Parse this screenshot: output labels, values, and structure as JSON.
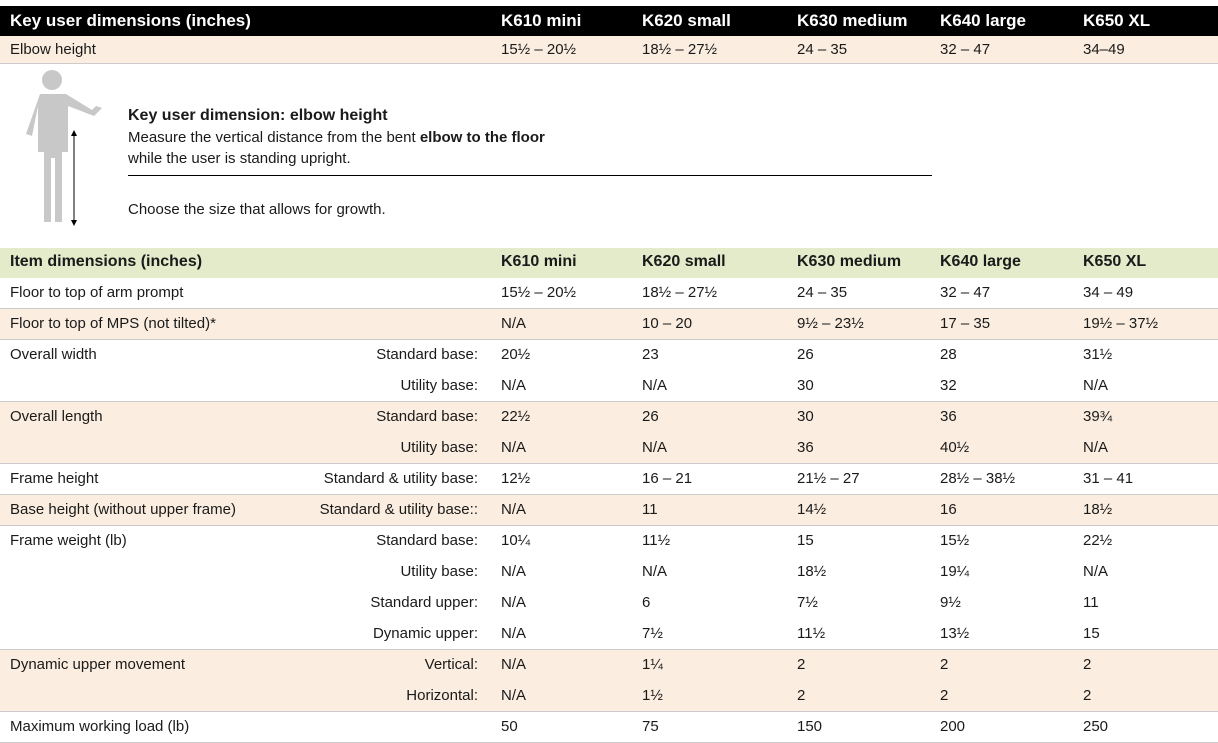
{
  "key_table": {
    "title": "Key user dimensions (inches)",
    "columns": [
      "K610 mini",
      "K620 small",
      "K630 medium",
      "K640 large",
      "K650 XL"
    ],
    "row": {
      "label": "Elbow height",
      "values": [
        "15½ – 20½",
        "18½ – 27½",
        "24 – 35",
        "32 – 47",
        "34–49"
      ]
    }
  },
  "info": {
    "title": "Key user dimension: elbow height",
    "line1": "Measure the vertical distance from the bent",
    "line1_bold": "elbow to the floor",
    "line2": "while the user is standing upright.",
    "note": "Choose the size that allows for growth."
  },
  "item_table": {
    "title": "Item dimensions (inches)",
    "columns": [
      "K610 mini",
      "K620 small",
      "K630 medium",
      "K640 large",
      "K650 XL"
    ],
    "groups": [
      {
        "label": "Floor to top of arm prompt",
        "rows": [
          {
            "values": [
              "15½ – 20½",
              "18½ – 27½",
              "24 – 35",
              "32 – 47",
              "34 – 49"
            ]
          }
        ]
      },
      {
        "label": "Floor to top of MPS (not tilted)*",
        "rows": [
          {
            "values": [
              "N/A",
              "10 – 20",
              "9½ – 23½",
              "17 – 35",
              "19½ – 37½"
            ]
          }
        ]
      },
      {
        "label": "Overall width",
        "rows": [
          {
            "base": "Standard base:",
            "values": [
              "20½",
              "23",
              "26",
              "28",
              "31½"
            ]
          },
          {
            "base": "Utility base:",
            "values": [
              "N/A",
              "N/A",
              "30",
              "32",
              "N/A"
            ]
          }
        ]
      },
      {
        "label": "Overall length",
        "rows": [
          {
            "base": "Standard base:",
            "values": [
              "22½",
              "26",
              "30",
              "36",
              "39¾"
            ]
          },
          {
            "base": "Utility base:",
            "values": [
              "N/A",
              "N/A",
              "36",
              "40½",
              "N/A"
            ]
          }
        ]
      },
      {
        "label": "Frame height",
        "rows": [
          {
            "base": "Standard & utility base:",
            "values": [
              "12½",
              "16 – 21",
              "21½ – 27",
              "28½ – 38½",
              "31 – 41"
            ]
          }
        ]
      },
      {
        "label": "Base height (without upper frame)",
        "rows": [
          {
            "base": "Standard & utility base::",
            "values": [
              "N/A",
              "11",
              "14½",
              "16",
              "18½"
            ]
          }
        ]
      },
      {
        "label": "Frame weight (lb)",
        "rows": [
          {
            "base": "Standard base:",
            "values": [
              "10¼",
              "11½",
              "15",
              "15½",
              "22½"
            ]
          },
          {
            "base": "Utility base:",
            "values": [
              "N/A",
              "N/A",
              "18½",
              "19¼",
              "N/A"
            ]
          },
          {
            "base": "Standard upper:",
            "values": [
              "N/A",
              "6",
              "7½",
              "9½",
              "11"
            ]
          },
          {
            "base": "Dynamic upper:",
            "values": [
              "N/A",
              "7½",
              "11½",
              "13½",
              "15"
            ]
          }
        ]
      },
      {
        "label": "Dynamic upper movement",
        "rows": [
          {
            "base": "Vertical:",
            "values": [
              "N/A",
              "1¼",
              "2",
              "2",
              "2"
            ]
          },
          {
            "base": "Horizontal:",
            "values": [
              "N/A",
              "1½",
              "2",
              "2",
              "2"
            ]
          }
        ]
      },
      {
        "label": "Maximum working load (lb)",
        "rows": [
          {
            "values": [
              "50",
              "75",
              "150",
              "200",
              "250"
            ]
          }
        ]
      }
    ]
  }
}
